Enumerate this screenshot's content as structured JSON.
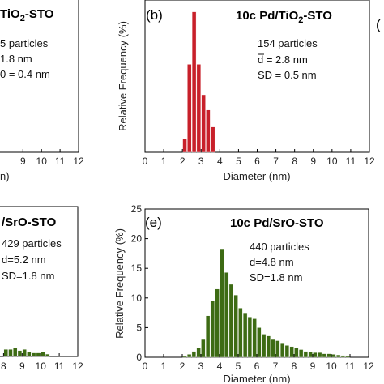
{
  "chart_data": [
    {
      "type": "bar",
      "panel": "",
      "title": "TiO",
      "title_sub": "2",
      "title_tail": "-STO",
      "annotations": [
        "5 particles",
        "1.8 nm",
        "0 = 0.4 nm"
      ],
      "xlabel": "n)",
      "ylabel": "",
      "x_ticks": [
        "9",
        "10",
        "11",
        "12"
      ],
      "color": "#c8202a",
      "categories": [],
      "values": []
    },
    {
      "type": "bar",
      "panel": "(b)",
      "title": "10c Pd/TiO",
      "title_sub": "2",
      "title_tail": "-STO",
      "annotations": [
        "154 particles",
        "d = 2.8 nm",
        "SD = 0.5 nm"
      ],
      "xlabel": "Diameter (nm)",
      "ylabel": "Relative Frequency (%)",
      "x_ticks": [
        "0",
        "1",
        "2",
        "3",
        "4",
        "5",
        "6",
        "7",
        "8",
        "9",
        "10",
        "11",
        "12"
      ],
      "xlim": [
        0,
        12
      ],
      "ylim": [
        0,
        45
      ],
      "bar_width": 0.25,
      "color": "#c8202a",
      "categories": [
        2.125,
        2.375,
        2.625,
        2.875,
        3.125,
        3.375,
        3.625
      ],
      "values": [
        4,
        26,
        41.5,
        26,
        17,
        12.5,
        7.5
      ]
    },
    {
      "type": "bar",
      "panel": "",
      "title": "/SrO-STO",
      "annotations": [
        "429 particles",
        "d=5.2 nm",
        "SD=1.8 nm"
      ],
      "xlabel": "",
      "ylabel": "",
      "x_ticks": [
        "8",
        "9",
        "10",
        "11",
        "12"
      ],
      "color": "#3d6b14",
      "categories": [
        8.125,
        8.375,
        8.625,
        8.875,
        9.125,
        9.375,
        9.625,
        9.875,
        10.125,
        10.375
      ],
      "values": [
        1.2,
        1.2,
        1.5,
        1.0,
        1.2,
        0.8,
        0.6,
        0.6,
        0.8,
        0.4
      ]
    },
    {
      "type": "bar",
      "panel": "(e)",
      "title": "10c Pd/SrO-STO",
      "annotations": [
        "440 particles",
        "d=4.8 nm",
        "SD=1.8 nm"
      ],
      "xlabel": "Diameter (nm)",
      "ylabel": "Relative Frequency (%)",
      "x_ticks": [
        "0",
        "1",
        "2",
        "3",
        "4",
        "5",
        "6",
        "7",
        "8",
        "9",
        "10",
        "11",
        "12"
      ],
      "y_ticks": [
        "0",
        "5",
        "10",
        "15",
        "20",
        "25"
      ],
      "xlim": [
        0,
        12
      ],
      "ylim": [
        0,
        25
      ],
      "bar_width": 0.25,
      "color": "#3d6b14",
      "categories": [
        2.125,
        2.375,
        2.625,
        2.875,
        3.125,
        3.375,
        3.625,
        3.875,
        4.125,
        4.375,
        4.625,
        4.875,
        5.125,
        5.375,
        5.625,
        5.875,
        6.125,
        6.375,
        6.625,
        6.875,
        7.125,
        7.375,
        7.625,
        7.875,
        8.125,
        8.375,
        8.625,
        8.875,
        9.125,
        9.375,
        9.625,
        9.875,
        10.125,
        10.375,
        10.625,
        10.875
      ],
      "values": [
        0.2,
        0.5,
        1.0,
        1.6,
        3.0,
        7.0,
        9.5,
        11.5,
        18.3,
        14.3,
        12.3,
        10.5,
        8.3,
        7.5,
        6.8,
        6.5,
        5.0,
        3.9,
        3.6,
        3.0,
        2.8,
        2.3,
        2.0,
        1.8,
        1.6,
        1.3,
        1.0,
        0.9,
        0.8,
        0.8,
        0.6,
        0.6,
        0.5,
        0.4,
        0.3,
        0.2
      ]
    }
  ],
  "page": {
    "edge_glyph": "("
  }
}
